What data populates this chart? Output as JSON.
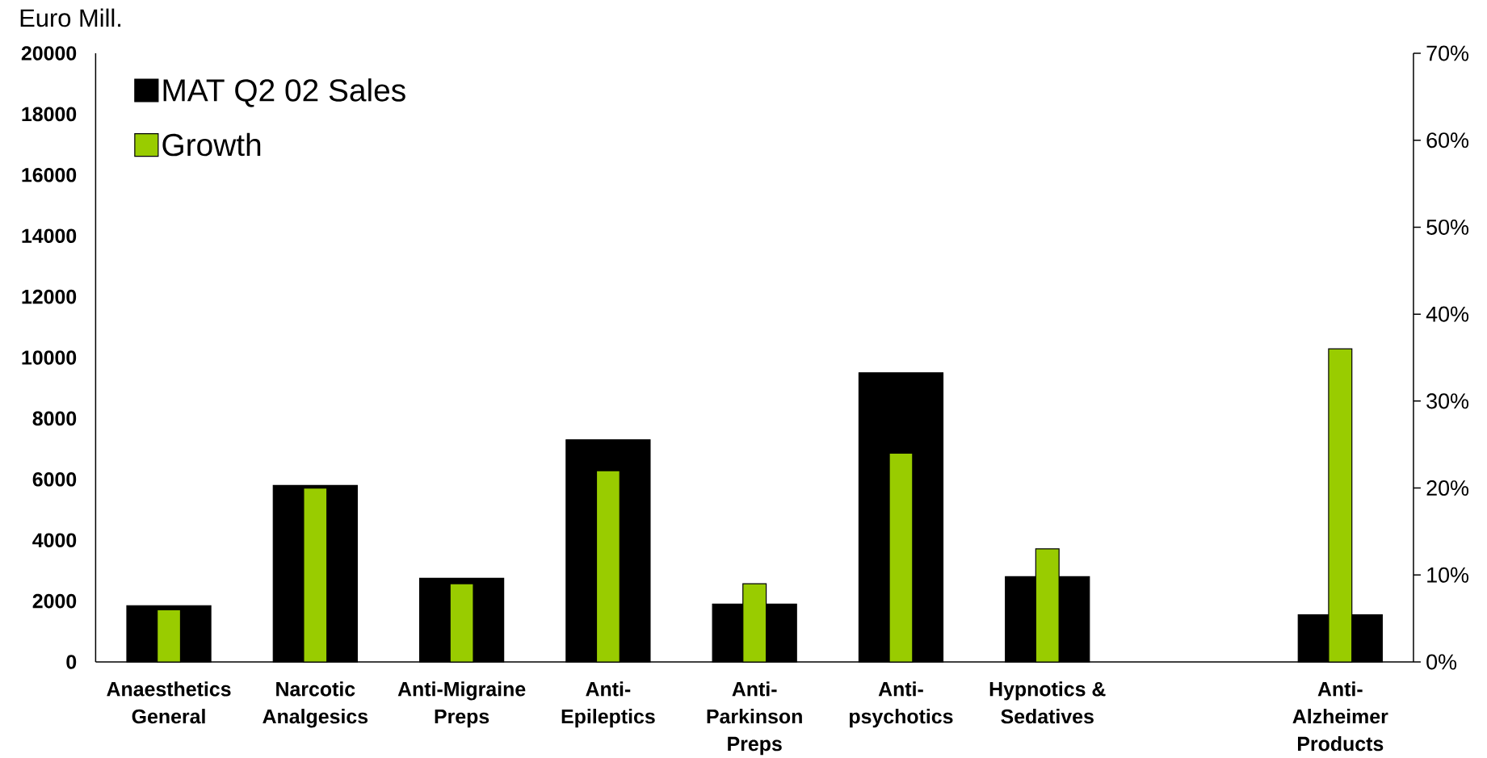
{
  "chart_data": {
    "type": "bar",
    "ylabel": "Euro Mill.",
    "categories": [
      "Anaesthetics General",
      "Narcotic Analgesics",
      "Anti-Migraine Preps",
      "Anti-Epileptics",
      "Anti-Parkinson Preps",
      "Anti-psychotics",
      "Hypnotics & Sedatives",
      null,
      "Anti-Alzheimer Products"
    ],
    "series": [
      {
        "name": "MAT Q2 02 Sales",
        "color": "#000000",
        "values": [
          1850,
          5800,
          2750,
          7300,
          1900,
          9500,
          2800,
          null,
          1550
        ]
      },
      {
        "name": "Growth",
        "color": "#99cc00",
        "axis": "y2",
        "values": [
          6,
          20,
          9,
          22,
          9,
          24,
          13,
          null,
          36
        ]
      }
    ],
    "ylim": [
      0,
      20000
    ],
    "yticks": [
      0,
      2000,
      4000,
      6000,
      8000,
      10000,
      12000,
      14000,
      16000,
      18000,
      20000
    ],
    "y2lim": [
      0,
      70
    ],
    "y2ticks": [
      {
        "value": 0,
        "label": "0%"
      },
      {
        "value": 10,
        "label": "10%"
      },
      {
        "value": 20,
        "label": "20%"
      },
      {
        "value": 30,
        "label": "30%"
      },
      {
        "value": 40,
        "label": "40%"
      },
      {
        "value": 50,
        "label": "50%"
      },
      {
        "value": 60,
        "label": "60%"
      },
      {
        "value": 70,
        "label": "70%"
      }
    ],
    "legend": "top left"
  }
}
